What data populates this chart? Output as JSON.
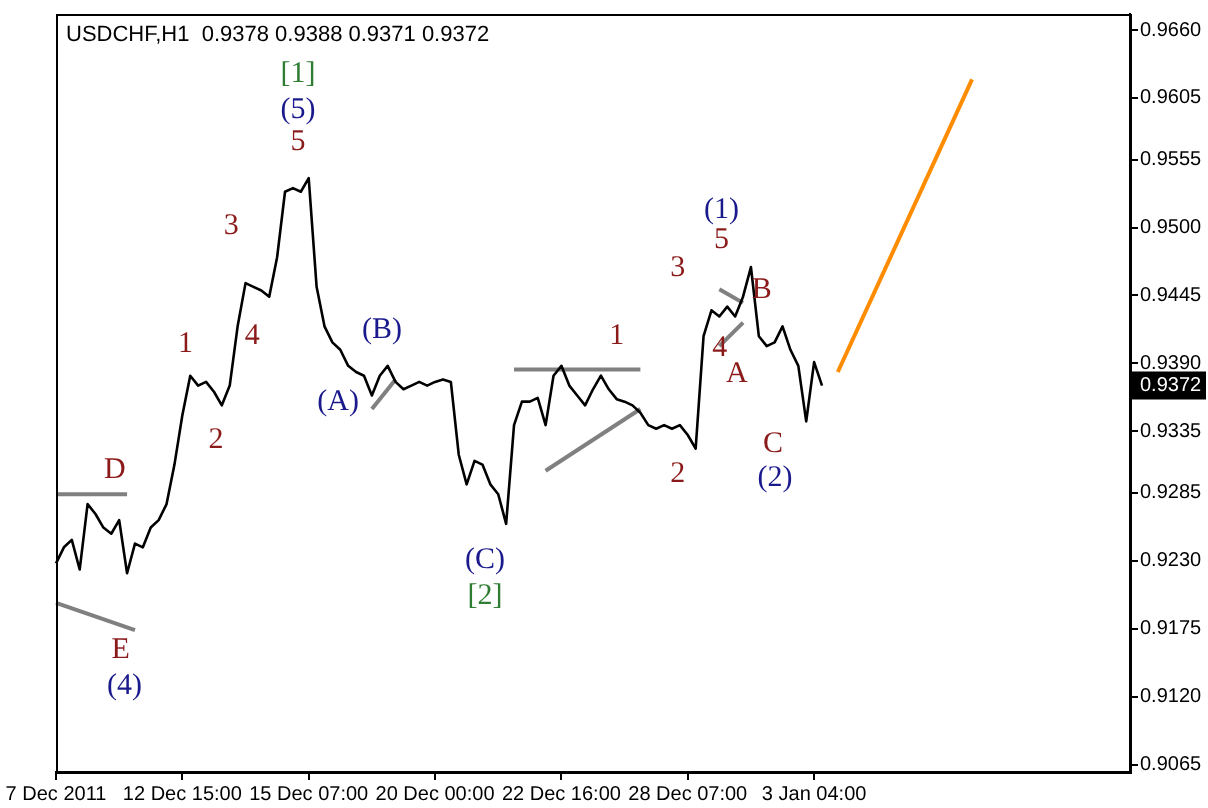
{
  "chart_data": {
    "type": "line",
    "title": "USDCHF,H1  0.9378 0.9388 0.9371 0.9372",
    "categories": [
      "7 Dec 2011",
      null,
      null,
      null,
      null,
      null,
      null,
      null,
      null,
      null,
      null,
      null,
      null,
      null,
      null,
      null,
      "12 Dec 15:00",
      null,
      null,
      null,
      null,
      null,
      null,
      null,
      null,
      null,
      null,
      null,
      null,
      null,
      null,
      null,
      "15 Dec 07:00",
      null,
      null,
      null,
      null,
      null,
      null,
      null,
      null,
      null,
      null,
      null,
      null,
      null,
      null,
      null,
      "20 Dec 00:00",
      null,
      null,
      null,
      null,
      null,
      null,
      null,
      null,
      null,
      null,
      null,
      null,
      null,
      null,
      null,
      "22 Dec 16:00",
      null,
      null,
      null,
      null,
      null,
      null,
      null,
      null,
      null,
      null,
      null,
      null,
      null,
      null,
      null,
      "28 Dec 07:00",
      null,
      null,
      null,
      null,
      null,
      null,
      null,
      null,
      null,
      null,
      null,
      null,
      null,
      null,
      null,
      "3 Jan 04:00",
      null,
      null,
      null,
      null,
      null,
      null,
      null,
      null,
      null,
      null,
      null,
      null,
      null,
      null,
      null,
      null,
      null,
      null,
      null,
      null,
      null,
      null,
      null,
      null,
      null,
      null,
      null,
      null,
      null,
      null,
      null,
      null,
      null,
      null,
      null,
      null,
      null,
      null,
      null,
      null
    ],
    "series": [
      {
        "color": "#000000",
        "values": [
          0.9228,
          0.9241,
          0.9247,
          0.9223,
          0.9276,
          0.9268,
          0.9257,
          0.9252,
          0.9263,
          0.922,
          0.9244,
          0.9241,
          0.9257,
          0.9263,
          0.9276,
          0.9308,
          0.9348,
          0.938,
          0.9372,
          0.9375,
          0.9367,
          0.9356,
          0.9372,
          0.942,
          0.9455,
          0.9452,
          0.9449,
          0.9444,
          0.9476,
          0.9529,
          0.9532,
          0.9529,
          0.954,
          0.9452,
          0.942,
          0.9407,
          0.9401,
          0.9388,
          0.9383,
          0.938,
          0.9364,
          0.938,
          0.9388,
          0.9375,
          0.9369,
          0.9372,
          0.9375,
          0.9372,
          0.9375,
          0.9377,
          0.9375,
          0.9316,
          0.9292,
          0.9311,
          0.9308,
          0.9292,
          0.9284,
          0.926,
          0.934,
          0.9359,
          0.9359,
          0.9362,
          0.934,
          0.938,
          0.9388,
          0.9372,
          0.9364,
          0.9356,
          0.9369,
          0.938,
          0.9369,
          0.9361,
          0.9359,
          0.9356,
          0.935,
          0.934,
          0.9337,
          0.934,
          0.9337,
          0.934,
          0.9332,
          0.9321,
          0.9412,
          0.9433,
          0.9428,
          0.9436,
          0.9428,
          0.9444,
          0.9468,
          0.9412,
          0.9404,
          0.9407,
          0.942,
          0.9401,
          0.9388,
          0.9343,
          0.9391,
          0.9372,
          null,
          null,
          null,
          null,
          null,
          null,
          null,
          null,
          null,
          null,
          null,
          null,
          null,
          null,
          null,
          null,
          null,
          null,
          null,
          null,
          null,
          null,
          null,
          null,
          null,
          null,
          null,
          null,
          null,
          null,
          null,
          null,
          null,
          null,
          null,
          null,
          null,
          null,
          null
        ]
      },
      {
        "color": "#ff8c00",
        "values": [
          null,
          null,
          null,
          null,
          null,
          null,
          null,
          null,
          null,
          null,
          null,
          null,
          null,
          null,
          null,
          null,
          null,
          null,
          null,
          null,
          null,
          null,
          null,
          null,
          null,
          null,
          null,
          null,
          null,
          null,
          null,
          null,
          null,
          null,
          null,
          null,
          null,
          null,
          null,
          null,
          null,
          null,
          null,
          null,
          null,
          null,
          null,
          null,
          null,
          null,
          null,
          null,
          null,
          null,
          null,
          null,
          null,
          null,
          null,
          null,
          null,
          null,
          null,
          null,
          null,
          null,
          null,
          null,
          null,
          null,
          null,
          null,
          null,
          null,
          null,
          null,
          null,
          null,
          null,
          null,
          null,
          null,
          null,
          null,
          null,
          null,
          null,
          null,
          null,
          null,
          null,
          null,
          null,
          null,
          null,
          null,
          null,
          null,
          null,
          0.9383,
          null,
          null,
          null,
          null,
          null,
          null,
          null,
          null,
          null,
          null,
          null,
          null,
          null,
          null,
          null,
          null,
          0.962,
          null,
          null,
          null,
          null,
          null,
          null,
          null,
          null,
          null,
          null,
          null,
          null,
          null,
          null,
          null,
          null,
          null,
          null,
          null,
          null
        ]
      },
      {
        "color": "#808080",
        "values": [
          0.9284,
          null,
          null,
          null,
          null,
          null,
          null,
          null,
          null,
          0.9284,
          null,
          null,
          null,
          null,
          null,
          null,
          null,
          null,
          null,
          null,
          null,
          null,
          null,
          null,
          null,
          null,
          null,
          null,
          null,
          null,
          null,
          null,
          null,
          null,
          null,
          null,
          null,
          null,
          null,
          null,
          null,
          null,
          null,
          null,
          null,
          null,
          null,
          null,
          null,
          null,
          null,
          null,
          null,
          null,
          null,
          null,
          null,
          null,
          null,
          null,
          null,
          null,
          null,
          null,
          null,
          null,
          null,
          null,
          null,
          null,
          null,
          null,
          null,
          null,
          null,
          null,
          null,
          null,
          null,
          null,
          null,
          null,
          null,
          null,
          null,
          null,
          null,
          null,
          null,
          null,
          null,
          null,
          null,
          null,
          null,
          null,
          null,
          null,
          null,
          null,
          null,
          null,
          null,
          null,
          null,
          null,
          null,
          null,
          null,
          null,
          null,
          null,
          null,
          null,
          null,
          null,
          null,
          null,
          null,
          null,
          null,
          null,
          null,
          null,
          null,
          null,
          null,
          null,
          null,
          null,
          null,
          null,
          null,
          null,
          null,
          null,
          null
        ]
      },
      {
        "color": "#808080",
        "values": [
          0.9196,
          null,
          null,
          null,
          null,
          null,
          null,
          null,
          null,
          null,
          0.9174,
          null,
          null,
          null,
          null,
          null,
          null,
          null,
          null,
          null,
          null,
          null,
          null,
          null,
          null,
          null,
          null,
          null,
          null,
          null,
          null,
          null,
          null,
          null,
          null,
          null,
          null,
          null,
          null,
          null,
          null,
          null,
          null,
          null,
          null,
          null,
          null,
          null,
          null,
          null,
          null,
          null,
          null,
          null,
          null,
          null,
          null,
          null,
          null,
          null,
          null,
          null,
          null,
          null,
          null,
          null,
          null,
          null,
          null,
          null,
          null,
          null,
          null,
          null,
          null,
          null,
          null,
          null,
          null,
          null,
          null,
          null,
          null,
          null,
          null,
          null,
          null,
          null,
          null,
          null,
          null,
          null,
          null,
          null,
          null,
          null,
          null,
          null,
          null,
          null,
          null,
          null,
          null,
          null,
          null,
          null,
          null,
          null,
          null,
          null,
          null,
          null,
          null,
          null,
          null,
          null,
          null,
          null,
          null,
          null,
          null,
          null,
          null,
          null,
          null,
          null,
          null,
          null,
          null,
          null,
          null,
          null,
          null,
          null,
          null,
          null,
          null
        ]
      },
      {
        "color": "#808080",
        "values": [
          null,
          null,
          null,
          null,
          null,
          null,
          null,
          null,
          null,
          null,
          null,
          null,
          null,
          null,
          null,
          null,
          null,
          null,
          null,
          null,
          null,
          null,
          null,
          null,
          null,
          null,
          null,
          null,
          null,
          null,
          null,
          null,
          null,
          null,
          null,
          null,
          null,
          null,
          null,
          null,
          0.9353,
          null,
          null,
          0.9377,
          null,
          null,
          null,
          null,
          null,
          null,
          null,
          null,
          null,
          null,
          null,
          null,
          null,
          null,
          null,
          null,
          null,
          null,
          null,
          null,
          null,
          null,
          null,
          null,
          null,
          null,
          null,
          null,
          null,
          null,
          null,
          null,
          null,
          null,
          null,
          null,
          null,
          null,
          null,
          null,
          null,
          null,
          null,
          null,
          null,
          null,
          null,
          null,
          null,
          null,
          null,
          null,
          null,
          null,
          null,
          null,
          null,
          null,
          null,
          null,
          null,
          null,
          null,
          null,
          null,
          null,
          null,
          null,
          null,
          null,
          null,
          null,
          null,
          null,
          null,
          null,
          null,
          null,
          null,
          null,
          null,
          null,
          null,
          null,
          null,
          null,
          null,
          null,
          null,
          null,
          null,
          null,
          null
        ]
      },
      {
        "color": "#808080",
        "values": [
          null,
          null,
          null,
          null,
          null,
          null,
          null,
          null,
          null,
          null,
          null,
          null,
          null,
          null,
          null,
          null,
          null,
          null,
          null,
          null,
          null,
          null,
          null,
          null,
          null,
          null,
          null,
          null,
          null,
          null,
          null,
          null,
          null,
          null,
          null,
          null,
          null,
          null,
          null,
          null,
          null,
          null,
          null,
          null,
          null,
          null,
          null,
          null,
          null,
          null,
          null,
          null,
          null,
          null,
          null,
          null,
          null,
          null,
          0.9385,
          null,
          null,
          null,
          null,
          null,
          null,
          null,
          null,
          null,
          null,
          null,
          null,
          null,
          null,
          null,
          0.9385,
          null,
          null,
          null,
          null,
          null,
          null,
          null,
          null,
          null,
          null,
          null,
          null,
          null,
          null,
          null,
          null,
          null,
          null,
          null,
          null,
          null,
          null,
          null,
          null,
          null,
          null,
          null,
          null,
          null,
          null,
          null,
          null,
          null,
          null,
          null,
          null,
          null,
          null,
          null,
          null,
          null,
          null,
          null,
          null,
          null,
          null,
          null,
          null,
          null,
          null,
          null,
          null,
          null,
          null,
          null,
          null,
          null,
          null,
          null,
          null,
          null,
          null
        ]
      },
      {
        "color": "#808080",
        "values": [
          null,
          null,
          null,
          null,
          null,
          null,
          null,
          null,
          null,
          null,
          null,
          null,
          null,
          null,
          null,
          null,
          null,
          null,
          null,
          null,
          null,
          null,
          null,
          null,
          null,
          null,
          null,
          null,
          null,
          null,
          null,
          null,
          null,
          null,
          null,
          null,
          null,
          null,
          null,
          null,
          null,
          null,
          null,
          null,
          null,
          null,
          null,
          null,
          null,
          null,
          null,
          null,
          null,
          null,
          null,
          null,
          null,
          null,
          null,
          null,
          null,
          null,
          0.9303,
          null,
          null,
          null,
          null,
          null,
          null,
          null,
          null,
          null,
          null,
          null,
          0.9353,
          null,
          null,
          null,
          null,
          null,
          null,
          null,
          null,
          null,
          null,
          null,
          null,
          null,
          null,
          null,
          null,
          null,
          null,
          null,
          null,
          null,
          null,
          null,
          null,
          null,
          null,
          null,
          null,
          null,
          null,
          null,
          null,
          null,
          null,
          null,
          null,
          null,
          null,
          null,
          null,
          null,
          null,
          null,
          null,
          null,
          null,
          null,
          null,
          null,
          null,
          null,
          null,
          null,
          null,
          null,
          null,
          null,
          null,
          null,
          null,
          null,
          null
        ]
      },
      {
        "color": "#808080",
        "values": [
          null,
          null,
          null,
          null,
          null,
          null,
          null,
          null,
          null,
          null,
          null,
          null,
          null,
          null,
          null,
          null,
          null,
          null,
          null,
          null,
          null,
          null,
          null,
          null,
          null,
          null,
          null,
          null,
          null,
          null,
          null,
          null,
          null,
          null,
          null,
          null,
          null,
          null,
          null,
          null,
          null,
          null,
          null,
          null,
          null,
          null,
          null,
          null,
          null,
          null,
          null,
          null,
          null,
          null,
          null,
          null,
          null,
          null,
          null,
          null,
          null,
          null,
          null,
          null,
          null,
          null,
          null,
          null,
          null,
          null,
          null,
          null,
          null,
          null,
          null,
          null,
          null,
          null,
          null,
          null,
          null,
          null,
          null,
          null,
          0.945,
          null,
          null,
          0.9439,
          null,
          null,
          null,
          null,
          null,
          null,
          null,
          null,
          null,
          null,
          null,
          null,
          null,
          null,
          null,
          null,
          null,
          null,
          null,
          null,
          null,
          null,
          null,
          null,
          null,
          null,
          null,
          null,
          null,
          null,
          null,
          null,
          null,
          null,
          null,
          null,
          null,
          null,
          null,
          null,
          null,
          null,
          null,
          null,
          null,
          null,
          null,
          null,
          null
        ]
      },
      {
        "color": "#808080",
        "values": [
          null,
          null,
          null,
          null,
          null,
          null,
          null,
          null,
          null,
          null,
          null,
          null,
          null,
          null,
          null,
          null,
          null,
          null,
          null,
          null,
          null,
          null,
          null,
          null,
          null,
          null,
          null,
          null,
          null,
          null,
          null,
          null,
          null,
          null,
          null,
          null,
          null,
          null,
          null,
          null,
          null,
          null,
          null,
          null,
          null,
          null,
          null,
          null,
          null,
          null,
          null,
          null,
          null,
          null,
          null,
          null,
          null,
          null,
          null,
          null,
          null,
          null,
          null,
          null,
          null,
          null,
          null,
          null,
          null,
          null,
          null,
          null,
          null,
          null,
          null,
          null,
          null,
          null,
          null,
          null,
          null,
          null,
          null,
          null,
          0.9404,
          null,
          null,
          0.9423,
          null,
          null,
          null,
          null,
          null,
          null,
          null,
          null,
          null,
          null,
          null,
          null,
          null,
          null,
          null,
          null,
          null,
          null,
          null,
          null,
          null,
          null,
          null,
          null,
          null,
          null,
          null,
          null,
          null,
          null,
          null,
          null,
          null,
          null,
          null,
          null,
          null,
          null,
          null,
          null,
          null,
          null,
          null,
          null,
          null,
          null,
          null,
          null,
          null
        ]
      }
    ],
    "ylim": [
      0.9059,
      0.9673
    ],
    "yticks": [
      {
        "value": 0.966,
        "label": "0.9660"
      },
      {
        "value": 0.9605,
        "label": "0.9605"
      },
      {
        "value": 0.9555,
        "label": "0.9555"
      },
      {
        "value": 0.95,
        "label": "0.9500"
      },
      {
        "value": 0.9445,
        "label": "0.9445"
      },
      {
        "value": 0.939,
        "label": "0.9390"
      },
      {
        "value": 0.9335,
        "label": "0.9335"
      },
      {
        "value": 0.9285,
        "label": "0.9285"
      },
      {
        "value": 0.923,
        "label": "0.9230"
      },
      {
        "value": 0.9175,
        "label": "0.9175"
      },
      {
        "value": 0.912,
        "label": "0.9120"
      },
      {
        "value": 0.9065,
        "label": "0.9065"
      }
    ],
    "annotations": [
      "[1]",
      "(5)",
      "5",
      "1",
      "2",
      "3",
      "4",
      "(A)",
      "(B)",
      "D",
      "E",
      "(4)",
      "(C)",
      "[2]",
      "1",
      "2",
      "3",
      "(1)",
      "5",
      "4",
      "A",
      "B",
      "C",
      "(2)",
      "0.9372"
    ]
  }
}
